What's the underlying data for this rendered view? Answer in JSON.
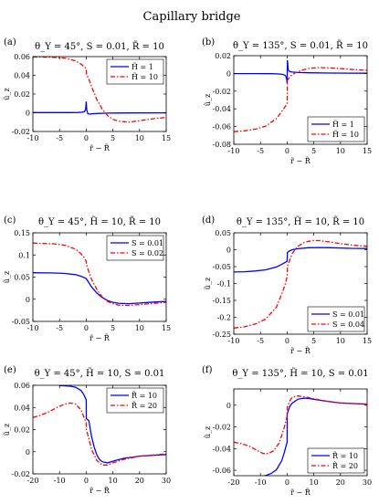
{
  "figure": {
    "title": "Capillary bridge"
  },
  "chart_data": [
    {
      "panel": "(a)",
      "type": "line",
      "title": "θ_Y = 45°, S = 0.01, R̃ = 10",
      "xlabel": "r̃ − R̃",
      "ylabel": "ũ_z",
      "xlim": [
        -10,
        15
      ],
      "ylim": [
        -0.02,
        0.06
      ],
      "xticks": [
        -10,
        -5,
        0,
        5,
        10,
        15
      ],
      "xticklabels": [
        "-10",
        "-5",
        "0",
        "5",
        "10",
        "15"
      ],
      "yticks": [
        -0.02,
        0,
        0.02,
        0.04,
        0.06
      ],
      "yticklabels": [
        "-0.02",
        "0",
        "0.02",
        "0.04",
        "0.06"
      ],
      "legend": "top-right",
      "series": [
        {
          "name": "H̃ = 1",
          "color": "#0000ff",
          "dash": "solid",
          "x": [
            -10,
            -6,
            -3,
            -1.5,
            -0.7,
            -0.3,
            -0.1,
            0,
            0.1,
            0.3,
            0.6,
            1,
            2,
            4,
            8,
            15
          ],
          "y": [
            0.0002,
            0.0002,
            0.0002,
            0.0003,
            0.0006,
            0.0012,
            0.004,
            0.012,
            0.003,
            -0.001,
            -0.0015,
            -0.0012,
            -0.0008,
            -0.0004,
            -0.0002,
            -0.0001
          ]
        },
        {
          "name": "H̃ = 10",
          "color": "#ff0000",
          "dash": "dashdot",
          "x": [
            -10,
            -6,
            -4,
            -2,
            -1,
            -0.3,
            0,
            0.05,
            0.5,
            1,
            2,
            3,
            4,
            5,
            6,
            8,
            10,
            13,
            15
          ],
          "y": [
            0.0598,
            0.0592,
            0.0583,
            0.0555,
            0.052,
            0.049,
            0.047,
            0.041,
            0.036,
            0.028,
            0.014,
            0.004,
            -0.003,
            -0.007,
            -0.009,
            -0.01,
            -0.0085,
            -0.006,
            -0.005
          ]
        }
      ]
    },
    {
      "panel": "(b)",
      "type": "line",
      "title": "θ_Y = 135°, S = 0.01, R̃ = 10",
      "xlabel": "r̃ − R̃",
      "ylabel": "ũ_z",
      "xlim": [
        -10,
        15
      ],
      "ylim": [
        -0.08,
        0.02
      ],
      "xticks": [
        -10,
        -5,
        0,
        5,
        10,
        15
      ],
      "xticklabels": [
        "-10",
        "-5",
        "0",
        "5",
        "10",
        "15"
      ],
      "yticks": [
        -0.08,
        -0.06,
        -0.04,
        -0.02,
        0,
        0.02
      ],
      "yticklabels": [
        "-0.08",
        "-0.06",
        "-0.04",
        "-0.02",
        "0",
        "0.02"
      ],
      "legend": "bottom-right",
      "series": [
        {
          "name": "H̃ = 1",
          "color": "#0000ff",
          "dash": "solid",
          "x": [
            -10,
            -6,
            -3,
            -1.5,
            -0.7,
            -0.3,
            -0.1,
            0,
            0.05,
            0.2,
            0.5,
            1,
            2,
            4,
            8,
            15
          ],
          "y": [
            -0.0002,
            -0.0002,
            -0.0003,
            -0.0006,
            -0.0012,
            -0.0025,
            -0.006,
            -0.011,
            0.015,
            0.004,
            0.002,
            0.0015,
            0.001,
            0.0007,
            0.0004,
            0.0002
          ]
        },
        {
          "name": "H̃ = 10",
          "color": "#ff0000",
          "dash": "dashdot",
          "x": [
            -10,
            -8,
            -6,
            -4,
            -2,
            -1,
            -0.3,
            0,
            0.05,
            0.5,
            1,
            2,
            3,
            4,
            5,
            6,
            8,
            10,
            12,
            15
          ],
          "y": [
            -0.0658,
            -0.0648,
            -0.063,
            -0.0595,
            -0.051,
            -0.043,
            -0.037,
            -0.034,
            -0.008,
            -0.004,
            -0.001,
            0.002,
            0.004,
            0.0055,
            0.0062,
            0.0065,
            0.0063,
            0.0055,
            0.0045,
            0.0035
          ]
        }
      ]
    },
    {
      "panel": "(c)",
      "type": "line",
      "title": "θ_Y = 45°, H̃ = 10, R̃ = 10",
      "xlabel": "r̃ − R̃",
      "ylabel": "ũ_z",
      "xlim": [
        -10,
        15
      ],
      "ylim": [
        -0.05,
        0.15
      ],
      "xticks": [
        -10,
        -5,
        0,
        5,
        10,
        15
      ],
      "xticklabels": [
        "-10",
        "-5",
        "0",
        "5",
        "10",
        "15"
      ],
      "yticks": [
        -0.05,
        0,
        0.05,
        0.1,
        0.15
      ],
      "yticklabels": [
        "-0.05",
        "0",
        "0.05",
        "0.1",
        "0.15"
      ],
      "legend": "top-right",
      "series": [
        {
          "name": "S = 0.01",
          "color": "#0000ff",
          "dash": "solid",
          "x": [
            -10,
            -6,
            -4,
            -2,
            -1,
            0,
            1,
            2,
            3,
            4,
            5,
            6,
            8,
            10,
            13,
            15
          ],
          "y": [
            0.0598,
            0.0592,
            0.0583,
            0.0555,
            0.052,
            0.047,
            0.028,
            0.014,
            0.004,
            -0.003,
            -0.007,
            -0.009,
            -0.01,
            -0.0085,
            -0.006,
            -0.005
          ]
        },
        {
          "name": "S = 0.02",
          "color": "#ff0000",
          "dash": "dashdot",
          "x": [
            -10,
            -6,
            -4,
            -2,
            -1,
            -0.3,
            0,
            0.05,
            0.5,
            1,
            2,
            3,
            4,
            5,
            6,
            8,
            10,
            13,
            15
          ],
          "y": [
            0.127,
            0.125,
            0.122,
            0.113,
            0.103,
            0.093,
            0.085,
            0.078,
            0.062,
            0.045,
            0.022,
            0.005,
            -0.005,
            -0.01,
            -0.013,
            -0.014,
            -0.012,
            -0.009,
            -0.007
          ]
        }
      ]
    },
    {
      "panel": "(d)",
      "type": "line",
      "title": "θ_Y = 135°, H̃ = 10, R̃ = 10",
      "xlabel": "r̃ − R̃",
      "ylabel": "ũ_z",
      "xlim": [
        -10,
        15
      ],
      "ylim": [
        -0.25,
        0.05
      ],
      "xticks": [
        -10,
        -5,
        0,
        5,
        10,
        15
      ],
      "xticklabels": [
        "-10",
        "-5",
        "0",
        "5",
        "10",
        "15"
      ],
      "yticks": [
        -0.25,
        -0.2,
        -0.15,
        -0.1,
        -0.05,
        0,
        0.05
      ],
      "yticklabels": [
        "-0.25",
        "-0.2",
        "-0.15",
        "-0.1",
        "-0.05",
        "0",
        "0.05"
      ],
      "legend": "bottom-right",
      "series": [
        {
          "name": "S = 0.01",
          "color": "#0000ff",
          "dash": "solid",
          "x": [
            -10,
            -8,
            -6,
            -4,
            -2,
            -1,
            -0.3,
            0,
            0.05,
            0.5,
            1,
            2,
            4,
            6,
            8,
            10,
            12,
            15
          ],
          "y": [
            -0.066,
            -0.065,
            -0.063,
            -0.0595,
            -0.051,
            -0.043,
            -0.037,
            -0.034,
            -0.008,
            -0.003,
            0,
            0.003,
            0.006,
            0.0065,
            0.006,
            0.005,
            0.004,
            0.0035
          ]
        },
        {
          "name": "S = 0.04",
          "color": "#ff0000",
          "dash": "dashdot",
          "x": [
            -10,
            -8,
            -6,
            -4,
            -2,
            -1,
            -0.3,
            0,
            0.05,
            0.5,
            1,
            2,
            3,
            4,
            5,
            6,
            8,
            10,
            12,
            15
          ],
          "y": [
            -0.232,
            -0.228,
            -0.22,
            -0.205,
            -0.17,
            -0.13,
            -0.1,
            -0.08,
            -0.05,
            -0.03,
            -0.01,
            0.01,
            0.02,
            0.025,
            0.027,
            0.027,
            0.023,
            0.018,
            0.014,
            0.01
          ]
        }
      ]
    },
    {
      "panel": "(e)",
      "type": "line",
      "title": "θ_Y = 45°, H̃ = 10, S = 0.01",
      "xlabel": "r̃ − R̃",
      "ylabel": "ũ_z",
      "xlim": [
        -20,
        30
      ],
      "ylim": [
        -0.02,
        0.06
      ],
      "xticks": [
        -20,
        -10,
        0,
        10,
        20,
        30
      ],
      "xticklabels": [
        "-20",
        "-10",
        "0",
        "10",
        "20",
        "30"
      ],
      "yticks": [
        -0.02,
        0,
        0.02,
        0.04,
        0.06
      ],
      "yticklabels": [
        "-0.02",
        "0",
        "0.02",
        "0.04",
        "0.06"
      ],
      "legend": "top-right",
      "series": [
        {
          "name": "R̃ = 10",
          "color": "#0000ff",
          "dash": "solid",
          "x": [
            -10,
            -6,
            -4,
            -2,
            -1,
            0,
            0.05,
            1,
            2,
            3,
            4,
            5,
            6,
            8,
            10,
            14,
            20,
            30
          ],
          "y": [
            0.0598,
            0.0592,
            0.0583,
            0.0555,
            0.052,
            0.047,
            0.03,
            0.028,
            0.014,
            0.004,
            -0.003,
            -0.007,
            -0.009,
            -0.01,
            -0.0085,
            -0.006,
            -0.004,
            -0.0025
          ]
        },
        {
          "name": "R̃ = 20",
          "color": "#ff0000",
          "dash": "dashdot",
          "x": [
            -20,
            -17,
            -14,
            -11,
            -8,
            -6,
            -4,
            -2,
            -1,
            0,
            0.05,
            1,
            2,
            4,
            6,
            8,
            10,
            14,
            20,
            30
          ],
          "y": [
            0.031,
            0.033,
            0.036,
            0.04,
            0.043,
            0.044,
            0.043,
            0.038,
            0.032,
            0.026,
            0.02,
            0.012,
            0.002,
            -0.008,
            -0.012,
            -0.012,
            -0.01,
            -0.007,
            -0.004,
            -0.002
          ]
        }
      ]
    },
    {
      "panel": "(f)",
      "type": "line",
      "title": "θ_Y = 135°, H̃ = 10, S = 0.01",
      "xlabel": "r̃ − R̃",
      "ylabel": "ũ_z",
      "xlim": [
        -20,
        30
      ],
      "ylim": [
        -0.065,
        0.015
      ],
      "xticks": [
        -20,
        -10,
        0,
        10,
        20,
        30
      ],
      "xticklabels": [
        "-20",
        "-10",
        "0",
        "10",
        "20",
        "30"
      ],
      "yticks": [
        -0.06,
        -0.04,
        -0.02,
        0
      ],
      "yticklabels": [
        "-0.06",
        "-0.04",
        "-0.02",
        "0"
      ],
      "legend": "bottom-right",
      "series": [
        {
          "name": "R̃ = 10",
          "color": "#0000ff",
          "dash": "solid",
          "x": [
            -10,
            -8,
            -6,
            -4,
            -2,
            -1,
            0,
            0.05,
            1,
            2,
            4,
            6,
            8,
            10,
            14,
            20,
            30
          ],
          "y": [
            -0.0658,
            -0.0648,
            -0.063,
            -0.0595,
            -0.051,
            -0.043,
            -0.034,
            -0.008,
            -0.001,
            0.002,
            0.0055,
            0.0065,
            0.0063,
            0.0055,
            0.004,
            0.002,
            0.001
          ]
        },
        {
          "name": "R̃ = 20",
          "color": "#ff0000",
          "dash": "dashdot",
          "x": [
            -20,
            -17,
            -14,
            -11,
            -9,
            -7,
            -5,
            -3,
            -1,
            0,
            0.05,
            1,
            2,
            4,
            6,
            10,
            14,
            20,
            30
          ],
          "y": [
            -0.034,
            -0.0355,
            -0.038,
            -0.042,
            -0.0445,
            -0.0445,
            -0.042,
            -0.035,
            -0.02,
            -0.01,
            -0.002,
            0.004,
            0.0075,
            0.0085,
            0.008,
            0.006,
            0.004,
            0.002,
            0.001
          ]
        }
      ]
    }
  ]
}
